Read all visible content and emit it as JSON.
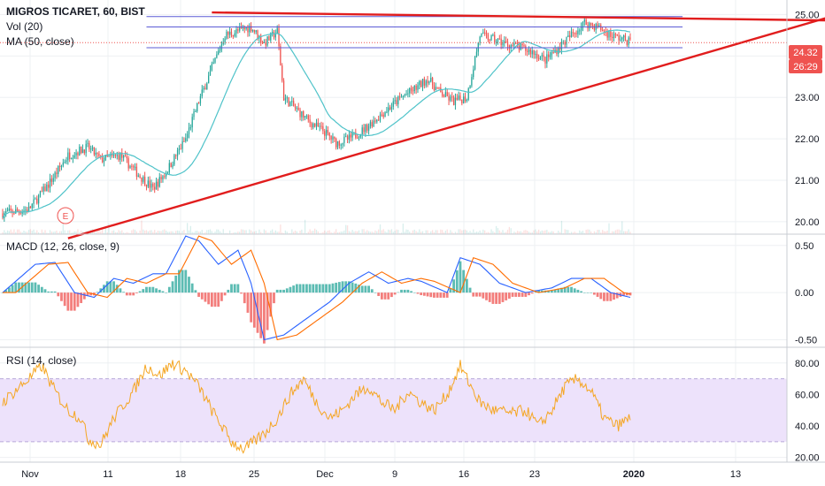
{
  "symbol": {
    "title": "MIGROS TICARET, 60, BIST"
  },
  "legends": {
    "vol": "Vol (20)",
    "ma": "MA (50, close)",
    "macd": "MACD (12, 26, close, 9)",
    "rsi": "RSI (14, close)"
  },
  "price_axis": {
    "ticks": [
      "25.00",
      "24.00",
      "23.00",
      "22.00",
      "21.00",
      "20.00"
    ],
    "last_price": "24.32",
    "countdown": "26:29"
  },
  "macd_axis": {
    "ticks": [
      "0.50",
      "0.00",
      "-0.50"
    ]
  },
  "rsi_axis": {
    "ticks": [
      "80.00",
      "60.00",
      "40.00",
      "20.00"
    ]
  },
  "time_axis": {
    "ticks": [
      "Nov",
      "11",
      "18",
      "25",
      "Dec",
      "9",
      "16",
      "23",
      "2020",
      "13"
    ]
  },
  "earnings_marker": "E",
  "colors": {
    "up": "#26a69a",
    "down": "#ef5350",
    "ma": "#4fc3c9",
    "trend": "#e11d1d",
    "level": "#5b5bd6",
    "macd": "#2962ff",
    "signal": "#ff6d00",
    "rsi": "#f5a623",
    "rsi_band": "#ede2fb",
    "last_price": "#ef5350",
    "grid": "#eef0f3"
  },
  "chart_data": [
    {
      "type": "candlestick",
      "pane": "price",
      "ylim": [
        19.7,
        25.35
      ],
      "ohlc_summary": {
        "start_close": 20.15,
        "low": 20.05,
        "high": 25.05,
        "last": 24.32
      },
      "path": [
        [
          0,
          20.2
        ],
        [
          4,
          20.3
        ],
        [
          7,
          20.9
        ],
        [
          10,
          21.6
        ],
        [
          13,
          21.8
        ],
        [
          15,
          21.5
        ],
        [
          18,
          21.6
        ],
        [
          21,
          21.1
        ],
        [
          23,
          20.8
        ],
        [
          25,
          21.2
        ],
        [
          28,
          22.0
        ],
        [
          30,
          22.9
        ],
        [
          32,
          23.7
        ],
        [
          34,
          24.5
        ],
        [
          36,
          24.6
        ],
        [
          38,
          24.7
        ],
        [
          40,
          24.3
        ],
        [
          42,
          24.6
        ],
        [
          43,
          23.0
        ],
        [
          45,
          22.7
        ],
        [
          47,
          22.4
        ],
        [
          49,
          22.2
        ],
        [
          51,
          21.9
        ],
        [
          53,
          22.0
        ],
        [
          55,
          22.2
        ],
        [
          58,
          22.6
        ],
        [
          61,
          23.0
        ],
        [
          63,
          23.2
        ],
        [
          65,
          23.45
        ],
        [
          67,
          23.1
        ],
        [
          69,
          22.9
        ],
        [
          71,
          23.0
        ],
        [
          73,
          24.5
        ],
        [
          75,
          24.4
        ],
        [
          77,
          24.3
        ],
        [
          79,
          24.2
        ],
        [
          81,
          24.1
        ],
        [
          83,
          23.9
        ],
        [
          85,
          24.2
        ],
        [
          87,
          24.5
        ],
        [
          89,
          24.8
        ],
        [
          91,
          24.7
        ],
        [
          93,
          24.5
        ],
        [
          95,
          24.4
        ],
        [
          96,
          24.35
        ]
      ],
      "volume_level": 0.12
    },
    {
      "type": "line",
      "pane": "price",
      "series": [
        {
          "name": "MA (50, close)",
          "kind": "moving-average"
        }
      ]
    },
    {
      "type": "line",
      "pane": "price",
      "annotations": {
        "trendlines": [
          {
            "from": [
              10,
              19.6
            ],
            "to": [
              130,
              25.1
            ],
            "color": "red"
          },
          {
            "from": [
              32,
              25.05
            ],
            "to": [
              130,
              24.85
            ],
            "color": "red"
          }
        ],
        "horizontal_levels": [
          {
            "value": 24.95,
            "x_end": 104
          },
          {
            "value": 24.7,
            "x_end": 104
          },
          {
            "value": 24.2,
            "x_end": 104
          }
        ],
        "last_price_line": 24.32
      }
    },
    {
      "type": "line",
      "pane": "macd",
      "ylim": [
        -0.58,
        0.62
      ],
      "series": [
        {
          "name": "MACD",
          "path": [
            [
              0,
              0.0
            ],
            [
              5,
              0.3
            ],
            [
              8,
              0.32
            ],
            [
              11,
              0.0
            ],
            [
              14,
              -0.05
            ],
            [
              17,
              0.15
            ],
            [
              20,
              0.1
            ],
            [
              23,
              0.2
            ],
            [
              25,
              0.2
            ],
            [
              28,
              0.6
            ],
            [
              30,
              0.55
            ],
            [
              33,
              0.3
            ],
            [
              36,
              0.45
            ],
            [
              38,
              0.1
            ],
            [
              40,
              -0.5
            ],
            [
              43,
              -0.45
            ],
            [
              46,
              -0.3
            ],
            [
              50,
              -0.1
            ],
            [
              53,
              0.1
            ],
            [
              56,
              0.22
            ],
            [
              59,
              0.1
            ],
            [
              62,
              0.15
            ],
            [
              64,
              0.12
            ],
            [
              68,
              0.0
            ],
            [
              70,
              0.37
            ],
            [
              73,
              0.3
            ],
            [
              76,
              0.1
            ],
            [
              80,
              0.0
            ],
            [
              84,
              0.05
            ],
            [
              87,
              0.15
            ],
            [
              90,
              0.15
            ],
            [
              93,
              0.0
            ],
            [
              96,
              -0.05
            ]
          ]
        },
        {
          "name": "Signal",
          "lag": 1
        },
        {
          "name": "Histogram"
        }
      ]
    },
    {
      "type": "line",
      "pane": "rsi",
      "ylim": [
        17,
        90
      ],
      "band": [
        30,
        70
      ],
      "series": [
        {
          "name": "RSI",
          "path": [
            [
              0,
              55
            ],
            [
              4,
              70
            ],
            [
              6,
              78
            ],
            [
              8,
              62
            ],
            [
              10,
              50
            ],
            [
              12,
              45
            ],
            [
              13,
              32
            ],
            [
              15,
              28
            ],
            [
              17,
              45
            ],
            [
              20,
              62
            ],
            [
              22,
              78
            ],
            [
              24,
              72
            ],
            [
              26,
              80
            ],
            [
              28,
              75
            ],
            [
              30,
              65
            ],
            [
              32,
              50
            ],
            [
              35,
              30
            ],
            [
              37,
              25
            ],
            [
              40,
              35
            ],
            [
              42,
              45
            ],
            [
              44,
              60
            ],
            [
              46,
              70
            ],
            [
              48,
              55
            ],
            [
              50,
              45
            ],
            [
              52,
              50
            ],
            [
              54,
              60
            ],
            [
              56,
              65
            ],
            [
              58,
              55
            ],
            [
              60,
              50
            ],
            [
              62,
              62
            ],
            [
              64,
              55
            ],
            [
              66,
              50
            ],
            [
              68,
              60
            ],
            [
              70,
              78
            ],
            [
              71,
              70
            ],
            [
              73,
              55
            ],
            [
              75,
              50
            ],
            [
              78,
              48
            ],
            [
              80,
              50
            ],
            [
              82,
              40
            ],
            [
              84,
              50
            ],
            [
              86,
              65
            ],
            [
              88,
              70
            ],
            [
              90,
              62
            ],
            [
              92,
              45
            ],
            [
              94,
              40
            ],
            [
              96,
              45
            ]
          ]
        }
      ]
    }
  ]
}
